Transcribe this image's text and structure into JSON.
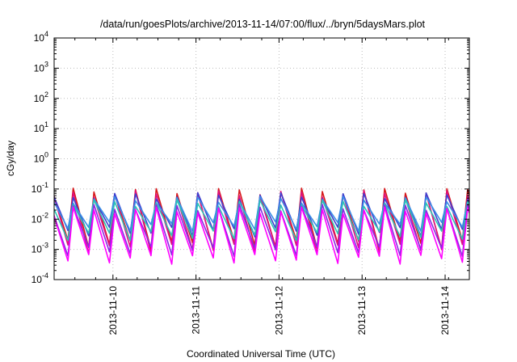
{
  "chart_data": {
    "type": "line",
    "title": "/data/run/goesPlots/archive/2013-11-14/07:00/flux/../bryn/5daysMars.plot",
    "xlabel": "Coordinated Universal Time (UTC)",
    "ylabel": "cGy/day",
    "yscale": "log",
    "ylim": [
      0.0001,
      10000
    ],
    "y_ticks": [
      {
        "value": 0.0001,
        "mant": "10",
        "exp": "-4"
      },
      {
        "value": 0.001,
        "mant": "10",
        "exp": "-3"
      },
      {
        "value": 0.01,
        "mant": "10",
        "exp": "-2"
      },
      {
        "value": 0.1,
        "mant": "10",
        "exp": "-1"
      },
      {
        "value": 1,
        "mant": "10",
        "exp": "0"
      },
      {
        "value": 10,
        "mant": "10",
        "exp": "1"
      },
      {
        "value": 100,
        "mant": "10",
        "exp": "2"
      },
      {
        "value": 1000,
        "mant": "10",
        "exp": "3"
      },
      {
        "value": 10000,
        "mant": "10",
        "exp": "4"
      }
    ],
    "xlim": [
      "2013-11-09T07:00",
      "2013-11-14T07:00"
    ],
    "x_ticks": [
      "2013-11-10",
      "2013-11-11",
      "2013-11-12",
      "2013-11-13",
      "2013-11-14"
    ],
    "grid": true,
    "cycle_hours": 6,
    "series": [
      {
        "color": "#d7191c",
        "peak": 0.085,
        "trough": 0.0015
      },
      {
        "color": "#e0117f",
        "peak": 0.07,
        "trough": 0.0011
      },
      {
        "color": "#3f3fcf",
        "peak": 0.06,
        "trough": 0.004
      },
      {
        "color": "#3a8ee6",
        "peak": 0.045,
        "trough": 0.006
      },
      {
        "color": "#2ec4b6",
        "peak": 0.035,
        "trough": 0.003
      },
      {
        "color": "#8a2be2",
        "peak": 0.025,
        "trough": 0.0009
      },
      {
        "color": "#ff00ff",
        "peak": 0.02,
        "trough": 0.0005
      }
    ]
  }
}
